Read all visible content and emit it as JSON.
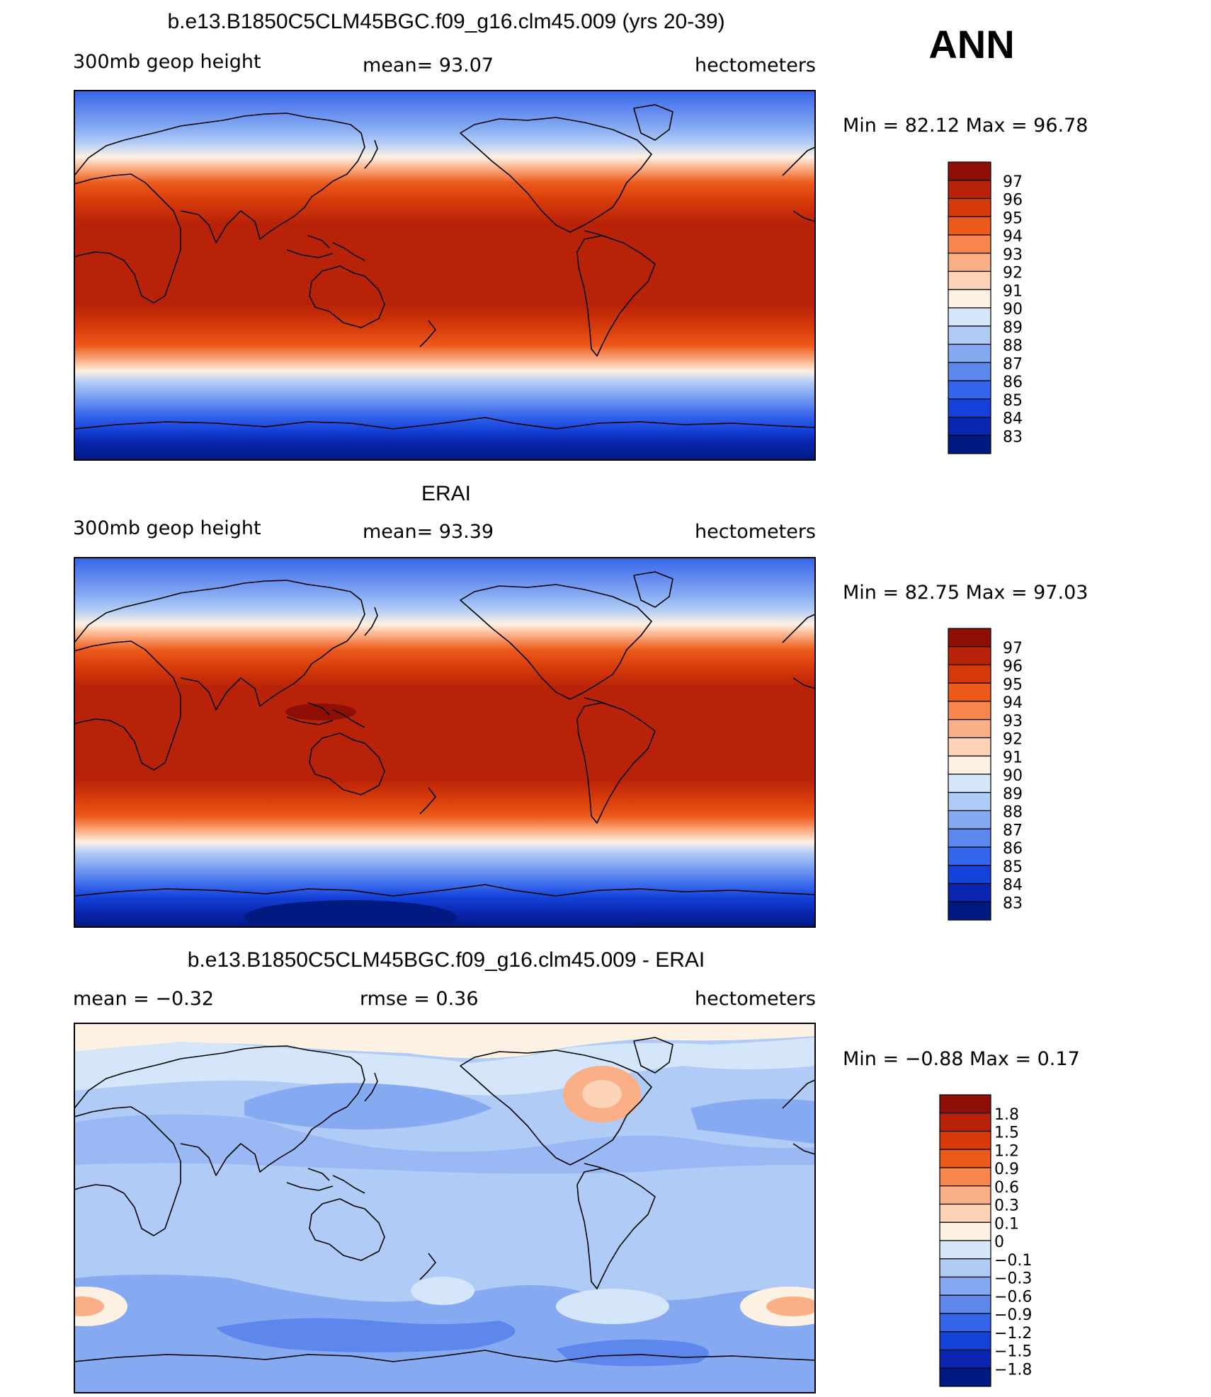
{
  "season": "ANN",
  "panels": [
    {
      "id": "model",
      "title": "b.e13.B1850C5CLM45BGC.f09_g16.clm45.009 (yrs 20-39)",
      "left_label": "300mb  geop  height",
      "center_label": "mean=   93.07",
      "right_label": "hectometers",
      "minmax": "Min  =    82.12  Max  =    96.78",
      "colorbar": {
        "labels": [
          "97",
          "96",
          "95",
          "94",
          "93",
          "92",
          "91",
          "90",
          "89",
          "88",
          "87",
          "86",
          "85",
          "84",
          "83"
        ],
        "colors": [
          "#8f0e06",
          "#b82208",
          "#d63a0a",
          "#ec5a1b",
          "#f7874f",
          "#fbaf86",
          "#fdd4b8",
          "#fdf1e4",
          "#d5e6fb",
          "#b0cbf6",
          "#86aaf2",
          "#5e87ee",
          "#3565ea",
          "#1441d9",
          "#0a26b0",
          "#001a82"
        ]
      }
    },
    {
      "id": "obs",
      "title": "ERAI",
      "left_label": "300mb  geop  height",
      "center_label": "mean=   93.39",
      "right_label": "hectometers",
      "minmax": "Min  =    82.75  Max  =    97.03",
      "colorbar": {
        "labels": [
          "97",
          "96",
          "95",
          "94",
          "93",
          "92",
          "91",
          "90",
          "89",
          "88",
          "87",
          "86",
          "85",
          "84",
          "83"
        ],
        "colors": [
          "#8f0e06",
          "#b82208",
          "#d63a0a",
          "#ec5a1b",
          "#f7874f",
          "#fbaf86",
          "#fdd4b8",
          "#fdf1e4",
          "#d5e6fb",
          "#b0cbf6",
          "#86aaf2",
          "#5e87ee",
          "#3565ea",
          "#1441d9",
          "#0a26b0",
          "#001a82"
        ]
      }
    },
    {
      "id": "diff",
      "title": "b.e13.B1850C5CLM45BGC.f09_g16.clm45.009 - ERAI",
      "left_label": "mean  =    −0.32",
      "center_label": "rmse  =     0.36",
      "right_label": "hectometers",
      "minmax": "Min  =    −0.88  Max  =      0.17",
      "colorbar": {
        "labels": [
          "1.8",
          "1.5",
          "1.2",
          "0.9",
          "0.6",
          "0.3",
          "0.1",
          "0",
          "−0.1",
          "−0.3",
          "−0.6",
          "−0.9",
          "−1.2",
          "−1.5",
          "−1.8"
        ],
        "colors": [
          "#8f0e06",
          "#b82208",
          "#d63a0a",
          "#ec5a1b",
          "#f7874f",
          "#fbaf86",
          "#fdd4b8",
          "#fdf1e4",
          "#d5e6fb",
          "#b0cbf6",
          "#86aaf2",
          "#5e87ee",
          "#3565ea",
          "#1441d9",
          "#0a26b0",
          "#001a82"
        ]
      }
    }
  ]
}
